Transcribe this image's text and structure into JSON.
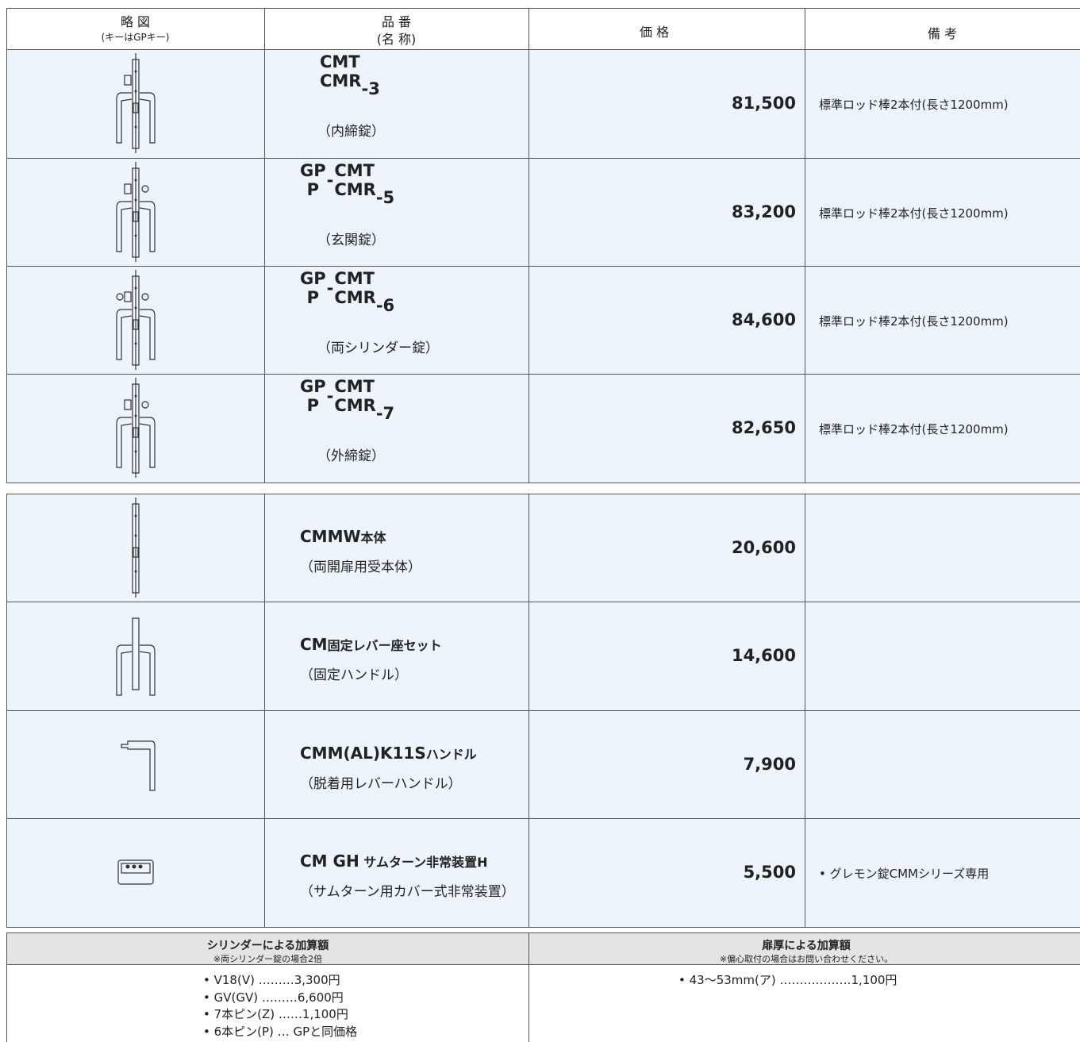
{
  "table": {
    "header": {
      "sketch": "略 図",
      "sketch_note": "(キーはGPキー)",
      "model": "品 番",
      "model_note": "(名 称)",
      "price": "価 格",
      "remarks": "備 考"
    },
    "rows": [
      {
        "model_top": "CMT",
        "model_bottom": "CMR",
        "suffix": "-3",
        "subname": "（内締錠）",
        "price": "81,500",
        "note": "標準ロッド棒2本付(長さ1200mm)"
      },
      {
        "prefix_top": "GP",
        "prefix_dash": "-",
        "prefix_bottom": "P",
        "model_top": "CMT",
        "model_bottom": "CMR",
        "suffix": "-5",
        "subname": "（玄関錠）",
        "price": "83,200",
        "note": "標準ロッド棒2本付(長さ1200mm)"
      },
      {
        "prefix_top": "GP",
        "prefix_dash": "-",
        "prefix_bottom": "P",
        "model_top": "CMT",
        "model_bottom": "CMR",
        "suffix": "-6",
        "subname": "（両シリンダー錠）",
        "price": "84,600",
        "note": "標準ロッド棒2本付(長さ1200mm)"
      },
      {
        "prefix_top": "GP",
        "prefix_dash": "-",
        "prefix_bottom": "P",
        "model_top": "CMT",
        "model_bottom": "CMR",
        "suffix": "-7",
        "subname": "（外締錠）",
        "price": "82,650",
        "note": "標準ロッド棒2本付(長さ1200mm)"
      },
      {
        "name_bold": "CMMW",
        "name_rest": "本体",
        "subname": "（両開扉用受本体）",
        "price": "20,600"
      },
      {
        "name_bold": "CM",
        "name_rest": "固定レバー座セット",
        "subname": "（固定ハンドル）",
        "price": "14,600"
      },
      {
        "name_bold": "CMM(AL)K11S",
        "name_rest": "ハンドル",
        "subname": "（脱着用レバーハンドル）",
        "price": "7,900"
      },
      {
        "name_bold": "CM GH",
        "name_rest": " サムターン非常装置H",
        "subname": "（サムターン用カバー式非常装置）",
        "price": "5,500",
        "note": "• グレモン錠CMMシリーズ専用"
      }
    ]
  },
  "surcharges": {
    "cylinder": {
      "title": "シリンダーによる加算額",
      "note": "※両シリンダー錠の場合2倍",
      "items": [
        "• V18(V) ………3,300円",
        "• GV(GV) ………6,600円",
        "• 7本ピン(Z) ……1,100円",
        "• 6本ピン(P) … GPと同価格"
      ]
    },
    "door_thickness": {
      "title": "扉厚による加算額",
      "note": "※偏心取付の場合はお問い合わせください。",
      "items": [
        "• 43〜53mm(ア) ………………1,100円"
      ]
    }
  }
}
